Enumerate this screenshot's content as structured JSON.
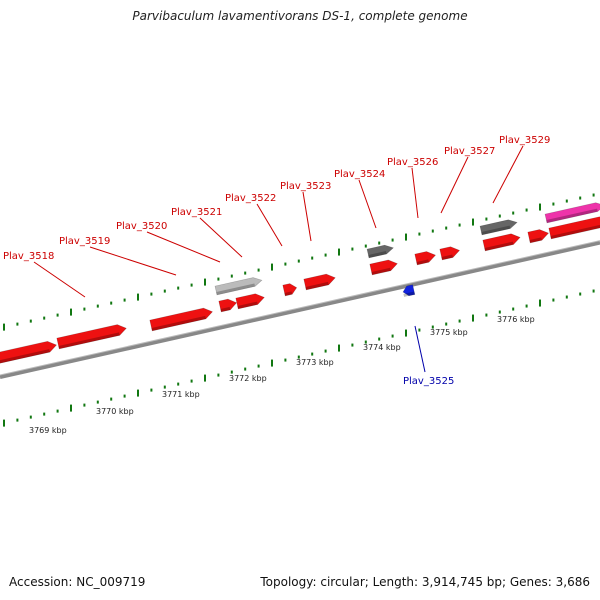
{
  "title": "Parvibaculum lavamentivorans DS-1, complete genome",
  "footer": {
    "accession": "Accession: NC_009719",
    "info": "Topology: circular; Length: 3,914,745 bp; Genes: 3,686"
  },
  "colors": {
    "forward_gene": "#ee1111",
    "reverse_gene": "#1122dd",
    "pseudo_gene": "#666666",
    "light_gene": "#bbbbbb",
    "rna_gene": "#ee33aa",
    "label_forward": "#cc0000",
    "label_reverse": "#0000aa",
    "backbone": "#888888",
    "tick": "#117711"
  },
  "kbp_labels": [
    "3769 kbp",
    "3770 kbp",
    "3771 kbp",
    "3772 kbp",
    "3773 kbp",
    "3774 kbp",
    "3775 kbp",
    "3776 kbp"
  ],
  "genes_top": [
    "Plav_3518",
    "Plav_3519",
    "Plav_3520",
    "Plav_3521",
    "Plav_3522",
    "Plav_3523",
    "Plav_3524",
    "Plav_3526",
    "Plav_3527",
    "Plav_3529"
  ],
  "genes_bottom": [
    "Plav_3525"
  ]
}
